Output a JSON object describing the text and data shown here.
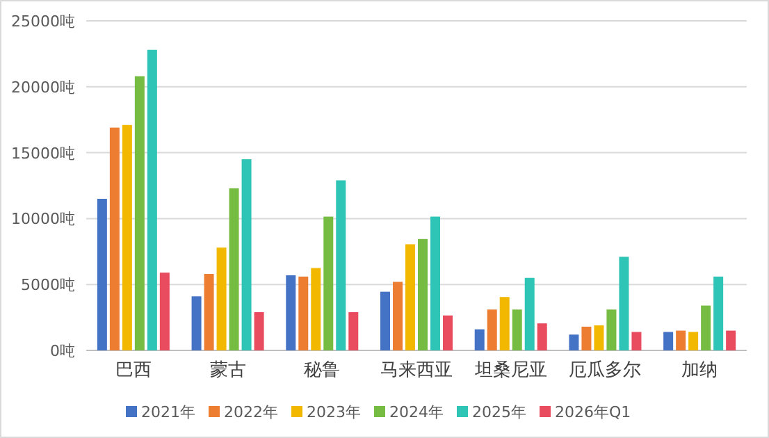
{
  "chart_data": {
    "type": "bar",
    "categories": [
      "巴西",
      "蒙古",
      "秘鲁",
      "马来西亚",
      "坦桑尼亚",
      "厄瓜多尔",
      "加纳"
    ],
    "series": [
      {
        "name": "2021年",
        "color": "#4472c4",
        "values": [
          11500,
          4100,
          5700,
          4450,
          1600,
          1200,
          1400
        ]
      },
      {
        "name": "2022年",
        "color": "#ed7d31",
        "values": [
          16900,
          5800,
          5600,
          5200,
          3100,
          1800,
          1500
        ]
      },
      {
        "name": "2023年",
        "color": "#f2b800",
        "values": [
          17100,
          7800,
          6250,
          8050,
          4050,
          1900,
          1400
        ]
      },
      {
        "name": "2024年",
        "color": "#76bc42",
        "values": [
          20800,
          12300,
          10150,
          8450,
          3100,
          3100,
          3400
        ]
      },
      {
        "name": "2025年",
        "color": "#2ec4b6",
        "values": [
          22800,
          14500,
          12900,
          10150,
          5500,
          7100,
          5600
        ]
      },
      {
        "name": "2026年Q1",
        "color": "#e84c5e",
        "values": [
          5900,
          2900,
          2900,
          2650,
          2050,
          1400,
          1500
        ]
      }
    ],
    "ylim": [
      0,
      25000
    ],
    "yticks": [
      {
        "value": 0,
        "label": "0吨"
      },
      {
        "value": 5000,
        "label": "5000吨"
      },
      {
        "value": 10000,
        "label": "10000吨"
      },
      {
        "value": 15000,
        "label": "15000吨"
      },
      {
        "value": 20000,
        "label": "20000吨"
      },
      {
        "value": 25000,
        "label": "25000吨"
      }
    ],
    "grid": "y",
    "legend": "bottom"
  }
}
